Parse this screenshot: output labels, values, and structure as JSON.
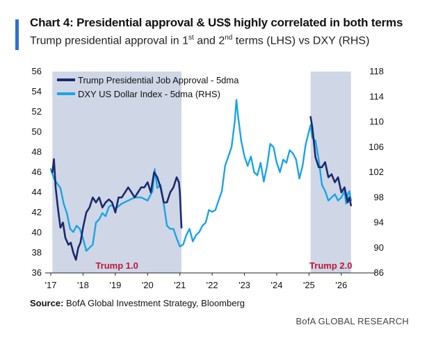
{
  "header": {
    "title": "Chart 4: Presidential approval & US$ highly correlated in both terms",
    "subtitle_prefix": "Trump presidential approval in 1",
    "subtitle_sup1": "st",
    "subtitle_mid": " and 2",
    "subtitle_sup2": "nd",
    "subtitle_suffix": " terms (LHS) vs DXY (RHS)"
  },
  "footer": {
    "source_label": "Source:",
    "source_text": " BofA Global Investment Strategy, Bloomberg",
    "brand": "BofA GLOBAL RESEARCH"
  },
  "colors": {
    "approval": "#1a2a6c",
    "dxy": "#1aa3e8",
    "shade": "#cfd6e6",
    "term_label": "#c0143c",
    "accent": "#2e6fd0"
  },
  "chart_data": {
    "type": "line",
    "title": "Chart 4: Presidential approval & US$ highly correlated in both terms",
    "subtitle": "Trump presidential approval in 1st and 2nd terms (LHS) vs DXY (RHS)",
    "x_ticks": [
      "'17",
      "'18",
      "'19",
      "'20",
      "'21",
      "'22",
      "'23",
      "'24",
      "'25",
      "'26"
    ],
    "xlim": [
      2017.0,
      2026.8
    ],
    "y_left": {
      "lim": [
        36,
        56
      ],
      "ticks": [
        36,
        38,
        40,
        42,
        44,
        46,
        48,
        50,
        52,
        54,
        56
      ]
    },
    "y_right": {
      "lim": [
        86,
        118
      ],
      "ticks": [
        86,
        90,
        94,
        98,
        102,
        106,
        110,
        114,
        118
      ]
    },
    "shaded_periods": [
      {
        "label": "Trump 1.0",
        "start": 2017.05,
        "end": 2021.05
      },
      {
        "label": "Trump 2.0",
        "start": 2025.05,
        "end": 2026.3
      }
    ],
    "legend_position": "top-left",
    "grid": false,
    "series": [
      {
        "name": "Trump Presidential Job Approval - 5dma",
        "axis": "left",
        "x": [
          2017.05,
          2017.1,
          2017.15,
          2017.22,
          2017.3,
          2017.38,
          2017.45,
          2017.55,
          2017.62,
          2017.7,
          2017.78,
          2017.85,
          2017.92,
          2018.0,
          2018.1,
          2018.2,
          2018.3,
          2018.4,
          2018.5,
          2018.6,
          2018.7,
          2018.8,
          2018.9,
          2019.0,
          2019.1,
          2019.2,
          2019.3,
          2019.4,
          2019.5,
          2019.6,
          2019.7,
          2019.8,
          2019.9,
          2020.0,
          2020.1,
          2020.2,
          2020.3,
          2020.4,
          2020.5,
          2020.6,
          2020.7,
          2020.8,
          2020.9,
          2020.97,
          2021.0,
          2021.05,
          2025.05,
          2025.1,
          2025.15,
          2025.2,
          2025.3,
          2025.4,
          2025.5,
          2025.6,
          2025.7,
          2025.8,
          2025.9,
          2026.0,
          2026.1,
          2026.2,
          2026.25,
          2026.3
        ],
        "values": [
          46.0,
          47.3,
          44.5,
          42.5,
          40.5,
          41.0,
          39.5,
          38.8,
          39.0,
          38.0,
          37.3,
          38.5,
          39.0,
          40.5,
          42.0,
          42.5,
          43.5,
          43.0,
          43.5,
          42.5,
          43.0,
          43.3,
          43.0,
          42.0,
          43.5,
          43.5,
          44.0,
          44.5,
          44.0,
          43.5,
          44.0,
          44.5,
          44.5,
          45.0,
          44.0,
          46.0,
          45.5,
          44.5,
          43.0,
          43.0,
          44.0,
          44.5,
          45.5,
          45.0,
          44.0,
          40.5,
          51.5,
          50.5,
          49.0,
          47.5,
          46.5,
          46.5,
          47.0,
          45.5,
          45.8,
          45.0,
          45.5,
          44.0,
          44.5,
          43.0,
          43.5,
          42.7
        ]
      },
      {
        "name": "DXY US Dollar Index - 5dma (RHS)",
        "axis": "right",
        "x": [
          2017.0,
          2017.1,
          2017.2,
          2017.3,
          2017.4,
          2017.5,
          2017.6,
          2017.7,
          2017.8,
          2017.9,
          2018.0,
          2018.1,
          2018.2,
          2018.3,
          2018.4,
          2018.5,
          2018.6,
          2018.7,
          2018.8,
          2018.9,
          2019.0,
          2019.2,
          2019.4,
          2019.6,
          2019.8,
          2020.0,
          2020.15,
          2020.22,
          2020.3,
          2020.4,
          2020.5,
          2020.6,
          2020.7,
          2020.8,
          2020.9,
          2021.0,
          2021.1,
          2021.2,
          2021.3,
          2021.4,
          2021.5,
          2021.6,
          2021.7,
          2021.8,
          2021.9,
          2022.0,
          2022.1,
          2022.2,
          2022.3,
          2022.4,
          2022.5,
          2022.6,
          2022.7,
          2022.75,
          2022.8,
          2022.9,
          2023.0,
          2023.1,
          2023.2,
          2023.3,
          2023.4,
          2023.5,
          2023.6,
          2023.7,
          2023.8,
          2023.9,
          2024.0,
          2024.1,
          2024.2,
          2024.3,
          2024.4,
          2024.5,
          2024.6,
          2024.7,
          2024.8,
          2024.9,
          2025.0,
          2025.05,
          2025.1,
          2025.2,
          2025.3,
          2025.4,
          2025.5,
          2025.6,
          2025.7,
          2025.8,
          2025.9,
          2026.0,
          2026.1,
          2026.15,
          2026.2,
          2026.25,
          2026.3
        ],
        "values": [
          102.5,
          101.0,
          100.2,
          99.5,
          97.0,
          95.5,
          93.0,
          92.5,
          93.5,
          93.0,
          91.5,
          89.5,
          90.0,
          90.5,
          94.0,
          94.5,
          95.5,
          95.0,
          96.5,
          96.8,
          96.2,
          97.0,
          97.5,
          98.0,
          98.0,
          97.5,
          99.0,
          102.5,
          99.5,
          100.0,
          97.0,
          93.5,
          93.0,
          93.0,
          91.5,
          90.2,
          90.5,
          92.0,
          93.0,
          91.0,
          92.0,
          92.5,
          93.5,
          94.0,
          96.0,
          95.7,
          96.0,
          97.5,
          99.0,
          103.0,
          104.5,
          106.0,
          110.0,
          113.5,
          111.0,
          107.0,
          104.5,
          103.0,
          104.5,
          102.0,
          101.5,
          103.5,
          100.5,
          103.0,
          106.5,
          106.0,
          103.5,
          102.0,
          104.0,
          103.5,
          105.5,
          105.0,
          104.0,
          101.0,
          103.0,
          106.5,
          108.5,
          109.5,
          107.5,
          107.0,
          104.0,
          100.0,
          99.0,
          97.5,
          98.0,
          98.5,
          97.5,
          98.0,
          99.0,
          97.0,
          98.5,
          99.0,
          97.5
        ]
      }
    ]
  }
}
